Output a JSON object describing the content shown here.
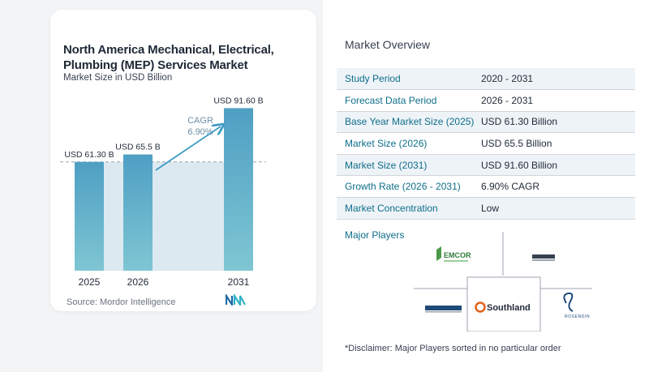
{
  "chart": {
    "title": "North America Mechanical, Electrical, Plumbing (MEP) Services Market",
    "subtitle": "Market Size in USD Billion",
    "source": "Source: Mordor Intelligence",
    "cagr_label": "CAGR",
    "cagr_value": "6.90%"
  },
  "chart_data": {
    "type": "bar",
    "title": "North America Mechanical, Electrical, Plumbing (MEP) Services Market",
    "subtitle": "Market Size in USD Billion",
    "categories": [
      "2025",
      "2026",
      "2031"
    ],
    "values": [
      61.3,
      65.5,
      91.6
    ],
    "data_labels": [
      "USD 61.30 B",
      "USD 65.5 B",
      "USD 91.60 B"
    ],
    "ylim": [
      0,
      95
    ],
    "grid": false,
    "annotations": [
      "CAGR",
      "6.90%"
    ],
    "colors": {
      "bar_top": "#4f9fc4",
      "bar_bottom": "#7fc6d3",
      "band": "#dde9f1",
      "arrow": "#3b9ac3"
    }
  },
  "overview": {
    "title": "Market Overview",
    "rows": [
      {
        "label": "Study Period",
        "value": "2020 - 2031"
      },
      {
        "label": "Forecast Data Period",
        "value": "2026 - 2031"
      },
      {
        "label": "Base Year Market Size (2025)",
        "value": "USD 61.30 Billion"
      },
      {
        "label": "Market Size (2026)",
        "value": "USD 65.5 Billion"
      },
      {
        "label": "Market Size (2031)",
        "value": "USD 91.60 Billion"
      },
      {
        "label": "Growth Rate (2026 - 2031)",
        "value": "6.90% CAGR"
      },
      {
        "label": "Market Concentration",
        "value": "Low"
      }
    ]
  },
  "players": {
    "title": "Major Players",
    "logos": [
      "EMCOR",
      "Southland",
      "ROSENDIN"
    ],
    "disclaimer": "*Disclaimer: Major Players sorted in no particular order"
  }
}
